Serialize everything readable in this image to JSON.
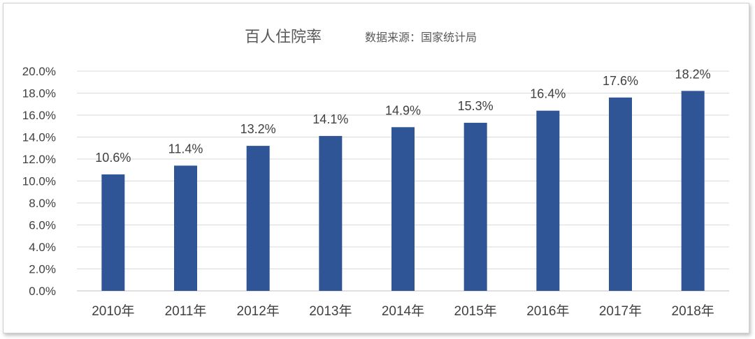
{
  "chart_data": {
    "type": "bar",
    "title": "百人住院率",
    "subtitle": "数据来源：国家统计局",
    "categories": [
      "2010年",
      "2011年",
      "2012年",
      "2013年",
      "2014年",
      "2015年",
      "2016年",
      "2017年",
      "2018年"
    ],
    "values": [
      10.6,
      11.4,
      13.2,
      14.1,
      14.9,
      15.3,
      16.4,
      17.6,
      18.2
    ],
    "data_labels": [
      "10.6%",
      "11.4%",
      "13.2%",
      "14.1%",
      "14.9%",
      "15.3%",
      "16.4%",
      "17.6%",
      "18.2%"
    ],
    "ylim": [
      0,
      20
    ],
    "y_ticks": [
      "0.0%",
      "2.0%",
      "4.0%",
      "6.0%",
      "8.0%",
      "10.0%",
      "12.0%",
      "14.0%",
      "16.0%",
      "18.0%",
      "20.0%"
    ],
    "xlabel": "",
    "ylabel": "",
    "grid": true,
    "legend": "none",
    "bar_color": "#2F5597"
  }
}
